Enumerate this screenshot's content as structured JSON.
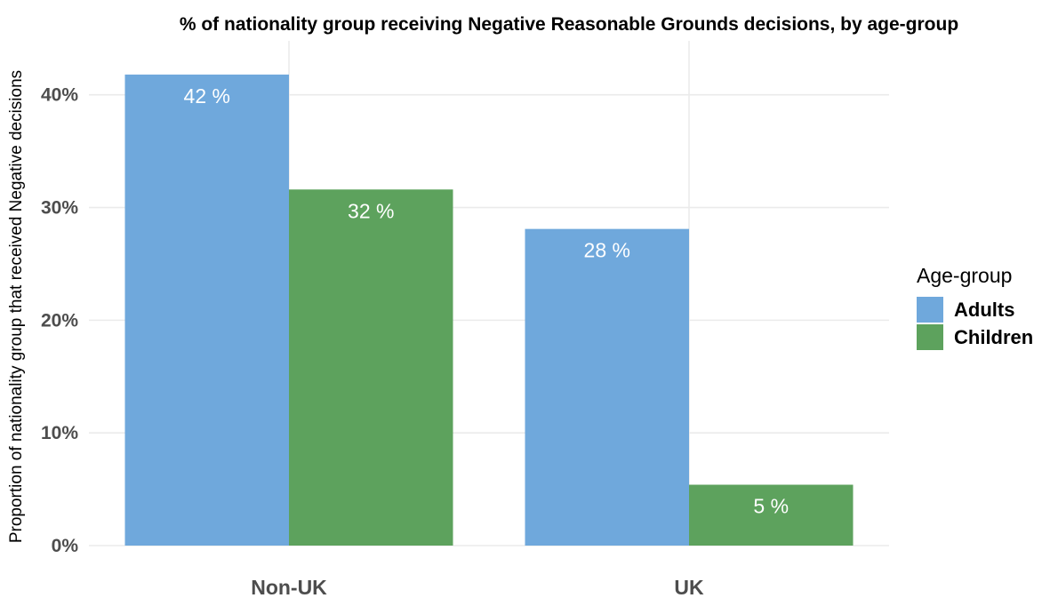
{
  "chart_data": {
    "type": "bar",
    "title": "% of nationality group receiving Negative Reasonable Grounds decisions, by age-group",
    "xlabel": "",
    "ylabel": "Proportion of nationality group that received Negative decisions",
    "categories": [
      "Non-UK",
      "UK"
    ],
    "series": [
      {
        "name": "Adults",
        "color": "#6fa8dc",
        "values": [
          41.8,
          28.1
        ],
        "labels": [
          "42 %",
          "28 %"
        ]
      },
      {
        "name": "Children",
        "color": "#5da25d",
        "values": [
          31.6,
          5.4
        ],
        "labels": [
          "32 %",
          "5 %"
        ]
      }
    ],
    "ylim": [
      0,
      44
    ],
    "yticks": [
      0,
      10,
      20,
      30,
      40
    ],
    "ytick_labels": [
      "0%",
      "10%",
      "20%",
      "30%",
      "40%"
    ],
    "grid": true,
    "legend": {
      "title": "Age-group",
      "position": "right"
    }
  }
}
